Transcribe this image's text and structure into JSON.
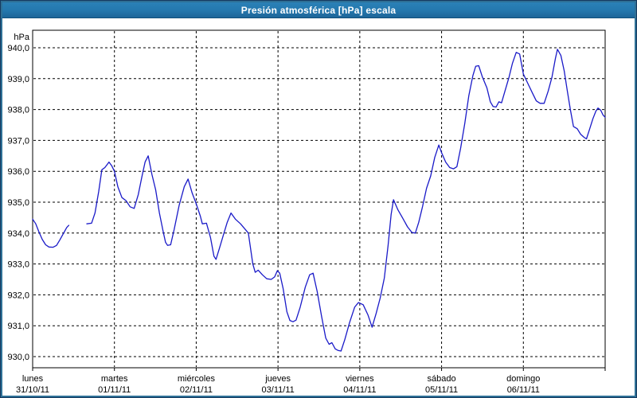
{
  "window": {
    "title": "Presión atmosférica [hPa] escala"
  },
  "colors": {
    "frame_outer": "#16395f",
    "frame_inner": "#2e7096",
    "titlebar_bg": "#2477ad",
    "titlebar_text": "#ffffff",
    "background": "#ffffff",
    "plot_border": "#000000",
    "grid": "#000000",
    "text": "#000000",
    "line": "#1a1ac8"
  },
  "chart_data": {
    "type": "line",
    "title": "Presión atmosférica [hPa] escala",
    "ylabel": "hPa",
    "ylim": [
      930,
      940
    ],
    "ytick_step": 1.0,
    "ytick_labels": [
      "940,0",
      "939,0",
      "938,0",
      "937,0",
      "936,0",
      "935,0",
      "934,0",
      "933,0",
      "932,0",
      "931,0",
      "930,0"
    ],
    "grid": "dashed",
    "legend_position": "none",
    "xlim_hours": [
      0,
      168
    ],
    "x_days": [
      {
        "label": "lunes",
        "date": "31/10/11"
      },
      {
        "label": "martes",
        "date": "01/11/11"
      },
      {
        "label": "miércoles",
        "date": "02/11/11"
      },
      {
        "label": "jueves",
        "date": "03/11/11"
      },
      {
        "label": "viernes",
        "date": "04/11/11"
      },
      {
        "label": "sábado",
        "date": "05/11/11"
      },
      {
        "label": "domingo",
        "date": "06/11/11"
      }
    ],
    "series": [
      {
        "name": "Presión atmosférica",
        "unit": "hPa",
        "color": "#1a1ac8",
        "segments": [
          [
            [
              0,
              934.45
            ],
            [
              0.9,
              934.3
            ],
            [
              1.8,
              934.05
            ],
            [
              2.8,
              933.8
            ],
            [
              3.8,
              933.62
            ],
            [
              4.8,
              933.55
            ],
            [
              6.0,
              933.54
            ],
            [
              7.0,
              933.6
            ],
            [
              8.0,
              933.78
            ],
            [
              9.0,
              933.98
            ],
            [
              10.0,
              934.18
            ],
            [
              10.6,
              934.25
            ]
          ],
          [
            [
              15.9,
              934.3
            ],
            [
              17.3,
              934.32
            ],
            [
              18.3,
              934.65
            ],
            [
              19.4,
              935.35
            ],
            [
              20.3,
              936.05
            ],
            [
              21.2,
              936.12
            ],
            [
              22.4,
              936.3
            ],
            [
              23.2,
              936.18
            ],
            [
              24.0,
              936.0
            ],
            [
              25.0,
              935.5
            ],
            [
              26.2,
              935.15
            ],
            [
              27.4,
              935.05
            ],
            [
              28.6,
              934.85
            ],
            [
              29.8,
              934.8
            ],
            [
              31.0,
              935.25
            ],
            [
              32.0,
              935.8
            ],
            [
              33.0,
              936.3
            ],
            [
              33.9,
              936.5
            ],
            [
              35.0,
              935.9
            ],
            [
              36.1,
              935.4
            ],
            [
              37.2,
              934.65
            ],
            [
              38.4,
              934.0
            ],
            [
              39.0,
              933.7
            ],
            [
              39.6,
              933.6
            ],
            [
              40.5,
              933.62
            ],
            [
              41.5,
              934.1
            ],
            [
              43.0,
              934.9
            ],
            [
              44.5,
              935.5
            ],
            [
              45.6,
              935.75
            ],
            [
              46.8,
              935.3
            ],
            [
              48.0,
              934.95
            ],
            [
              49.2,
              934.55
            ],
            [
              49.8,
              934.3
            ],
            [
              51.0,
              934.32
            ],
            [
              52.2,
              933.85
            ],
            [
              53.2,
              933.25
            ],
            [
              53.8,
              933.15
            ],
            [
              54.8,
              933.5
            ],
            [
              56.0,
              933.95
            ],
            [
              57.1,
              934.35
            ],
            [
              58.2,
              934.65
            ],
            [
              59.5,
              934.45
            ],
            [
              61.0,
              934.3
            ],
            [
              63.3,
              934.0
            ],
            [
              64.6,
              933.0
            ],
            [
              65.3,
              932.73
            ],
            [
              66.2,
              932.8
            ],
            [
              67.4,
              932.65
            ],
            [
              68.7,
              932.52
            ],
            [
              70.0,
              932.5
            ],
            [
              71.0,
              932.58
            ],
            [
              71.8,
              932.78
            ],
            [
              72.5,
              932.7
            ],
            [
              73.5,
              932.2
            ],
            [
              74.6,
              931.45
            ],
            [
              75.5,
              931.17
            ],
            [
              76.4,
              931.13
            ],
            [
              77.3,
              931.18
            ],
            [
              78.5,
              931.6
            ],
            [
              80.0,
              932.25
            ],
            [
              81.3,
              932.65
            ],
            [
              82.3,
              932.7
            ],
            [
              83.5,
              932.1
            ],
            [
              84.8,
              931.3
            ],
            [
              86.0,
              930.6
            ],
            [
              87.0,
              930.4
            ],
            [
              87.8,
              930.45
            ],
            [
              88.8,
              930.25
            ],
            [
              89.6,
              930.2
            ],
            [
              90.5,
              930.18
            ],
            [
              91.6,
              930.55
            ],
            [
              93.0,
              931.1
            ],
            [
              94.5,
              931.6
            ],
            [
              95.6,
              931.75
            ],
            [
              97.0,
              931.68
            ],
            [
              98.4,
              931.35
            ],
            [
              99.6,
              930.95
            ],
            [
              100.8,
              931.4
            ],
            [
              102.0,
              931.9
            ],
            [
              103.2,
              932.55
            ],
            [
              104.3,
              933.6
            ],
            [
              105.2,
              934.6
            ],
            [
              105.9,
              935.08
            ],
            [
              107.2,
              934.75
            ],
            [
              108.5,
              934.5
            ],
            [
              110.0,
              934.2
            ],
            [
              111.3,
              934.02
            ],
            [
              112.3,
              934.0
            ],
            [
              113.3,
              934.35
            ],
            [
              114.4,
              934.85
            ],
            [
              115.6,
              935.45
            ],
            [
              116.8,
              935.85
            ],
            [
              118.0,
              936.45
            ],
            [
              119.2,
              936.85
            ],
            [
              120.0,
              936.6
            ],
            [
              121.2,
              936.3
            ],
            [
              122.4,
              936.12
            ],
            [
              123.5,
              936.08
            ],
            [
              124.5,
              936.15
            ],
            [
              125.6,
              936.75
            ],
            [
              126.8,
              937.55
            ],
            [
              128.0,
              938.45
            ],
            [
              129.2,
              939.1
            ],
            [
              130.0,
              939.4
            ],
            [
              130.9,
              939.42
            ],
            [
              132.0,
              939.05
            ],
            [
              133.3,
              938.7
            ],
            [
              134.3,
              938.25
            ],
            [
              135.1,
              938.1
            ],
            [
              136.0,
              938.08
            ],
            [
              136.8,
              938.25
            ],
            [
              137.6,
              938.22
            ],
            [
              138.6,
              938.6
            ],
            [
              139.8,
              939.05
            ],
            [
              140.8,
              939.5
            ],
            [
              141.9,
              939.85
            ],
            [
              142.9,
              939.8
            ],
            [
              144.0,
              939.15
            ],
            [
              145.3,
              938.85
            ],
            [
              146.6,
              938.55
            ],
            [
              147.8,
              938.28
            ],
            [
              148.9,
              938.2
            ],
            [
              150.1,
              938.2
            ],
            [
              151.3,
              938.6
            ],
            [
              152.4,
              939.05
            ],
            [
              153.4,
              939.65
            ],
            [
              154.0,
              939.95
            ],
            [
              155.0,
              939.75
            ],
            [
              156.0,
              939.25
            ],
            [
              156.9,
              938.6
            ],
            [
              157.8,
              938.0
            ],
            [
              158.7,
              937.45
            ],
            [
              159.8,
              937.38
            ],
            [
              160.8,
              937.2
            ],
            [
              161.8,
              937.1
            ],
            [
              162.5,
              937.05
            ],
            [
              163.4,
              937.35
            ],
            [
              164.4,
              937.7
            ],
            [
              165.3,
              937.95
            ],
            [
              165.9,
              938.05
            ],
            [
              166.7,
              937.98
            ],
            [
              167.4,
              937.82
            ],
            [
              168.0,
              937.75
            ]
          ]
        ]
      }
    ]
  }
}
